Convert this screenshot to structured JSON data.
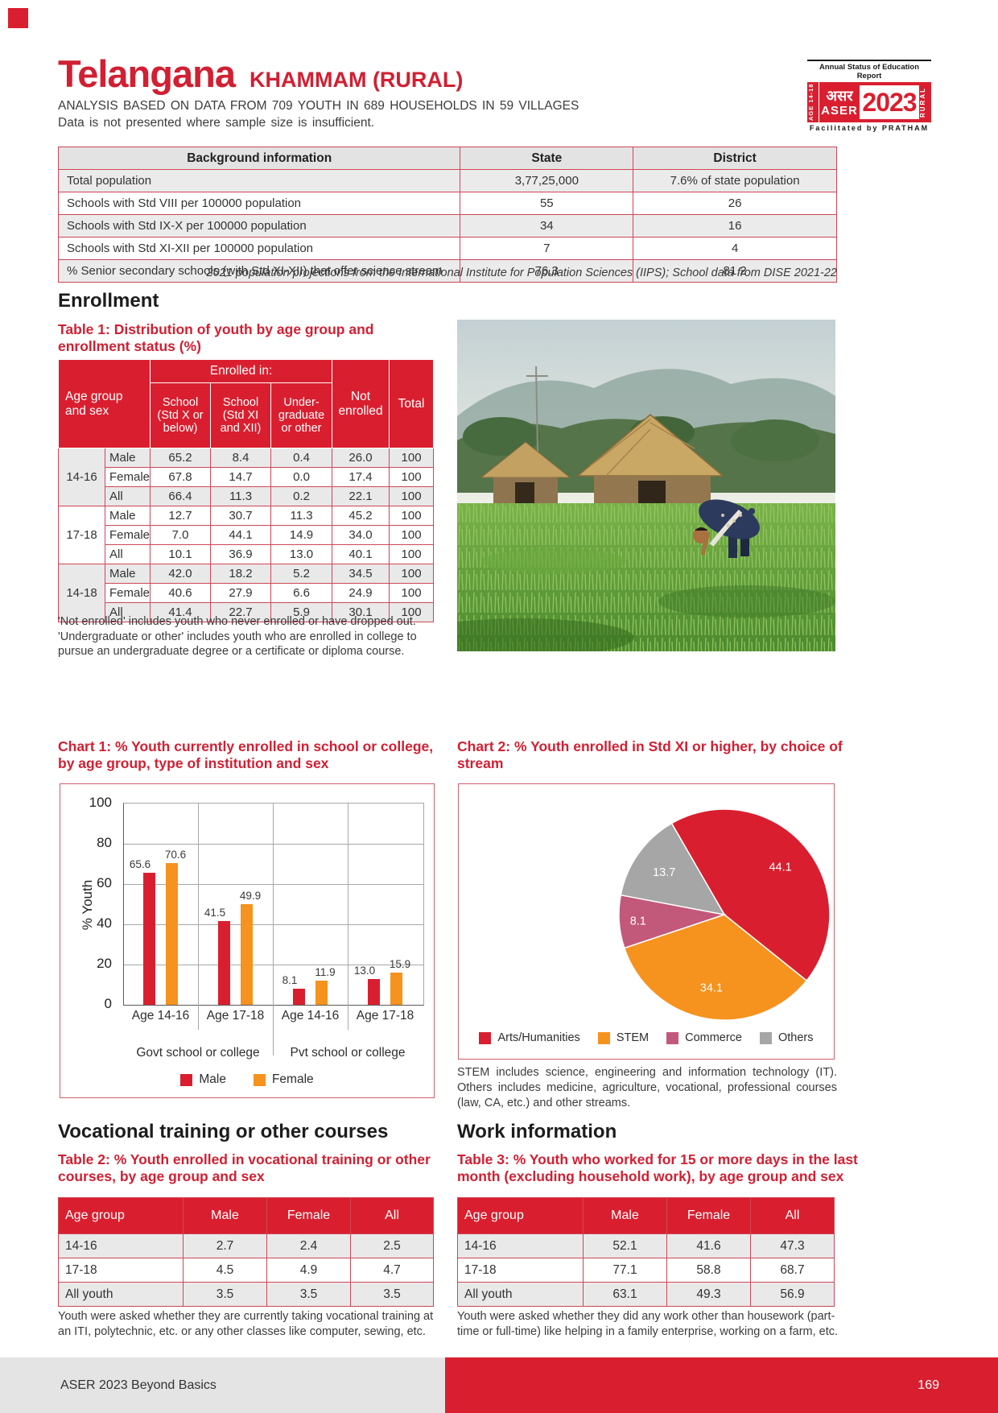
{
  "page": {
    "state": "Telangana",
    "district": "KHAMMAM (RURAL)",
    "subtitle1": "ANALYSIS BASED ON DATA FROM 709 YOUTH IN 689 HOUSEHOLDS IN 59 VILLAGES",
    "subtitle2": "Data is not presented where sample size is insufficient.",
    "footer_left": "ASER 2023 Beyond Basics",
    "footer_page": "169"
  },
  "logo": {
    "top": "Annual Status of Education Report",
    "age": "AGE 14-18",
    "hindi": "असर",
    "aser": "ASER",
    "year": "2023",
    "rural": "RURAL",
    "bottom": "Facilitated by PRATHAM"
  },
  "background_table": {
    "headers": [
      "Background information",
      "State",
      "District"
    ],
    "rows": [
      {
        "label": "Total population",
        "state": "3,77,25,000",
        "district": "7.6% of state population"
      },
      {
        "label": "Schools with Std VIII per 100000 population",
        "state": "55",
        "district": "26"
      },
      {
        "label": "Schools with Std IX-X per 100000 population",
        "state": "34",
        "district": "16"
      },
      {
        "label": "Schools with Std XI-XII per 100000 population",
        "state": "7",
        "district": "4"
      },
      {
        "label": "% Senior secondary schools (with Std XI-XII) that offer science stream",
        "state": "76.3",
        "district": "81.2"
      }
    ],
    "note": "2021 population projections from the International Institute for Population Sciences (IIPS); School data from DISE 2021-22"
  },
  "enrollment": {
    "heading": "Enrollment",
    "table1": {
      "title": "Table 1: Distribution of youth by age group and\nenrollment status (%)",
      "h_age": "Age group\nand sex",
      "h_enrolled": "Enrolled in:",
      "h_school1": "School\n(Std X or\nbelow)",
      "h_school2": "School\n(Std XI\nand XII)",
      "h_ug": "Under-\ngraduate\nor other",
      "h_not": "Not\nenrolled",
      "h_total": "Total",
      "groups": [
        {
          "age": "14-16",
          "rows": [
            {
              "sex": "Male",
              "c": [
                "65.2",
                "8.4",
                "0.4",
                "26.0",
                "100"
              ]
            },
            {
              "sex": "Female",
              "c": [
                "67.8",
                "14.7",
                "0.0",
                "17.4",
                "100"
              ]
            },
            {
              "sex": "All",
              "c": [
                "66.4",
                "11.3",
                "0.2",
                "22.1",
                "100"
              ]
            }
          ]
        },
        {
          "age": "17-18",
          "rows": [
            {
              "sex": "Male",
              "c": [
                "12.7",
                "30.7",
                "11.3",
                "45.2",
                "100"
              ]
            },
            {
              "sex": "Female",
              "c": [
                "7.0",
                "44.1",
                "14.9",
                "34.0",
                "100"
              ]
            },
            {
              "sex": "All",
              "c": [
                "10.1",
                "36.9",
                "13.0",
                "40.1",
                "100"
              ]
            }
          ]
        },
        {
          "age": "14-18",
          "rows": [
            {
              "sex": "Male",
              "c": [
                "42.0",
                "18.2",
                "5.2",
                "34.5",
                "100"
              ]
            },
            {
              "sex": "Female",
              "c": [
                "40.6",
                "27.9",
                "6.6",
                "24.9",
                "100"
              ]
            },
            {
              "sex": "All",
              "c": [
                "41.4",
                "22.7",
                "5.9",
                "30.1",
                "100"
              ]
            }
          ]
        }
      ],
      "note": "'Not enrolled' includes youth who never enrolled or have dropped out.\n'Undergraduate or other' includes youth who are enrolled in college to pursue an undergraduate degree or a certificate or diploma course."
    }
  },
  "chart1": {
    "title": "Chart 1: % Youth currently enrolled in school or college,\nby age group, type of institution and sex"
  },
  "chart2": {
    "title": "Chart 2: % Youth enrolled in Std XI or higher, by choice of\nstream",
    "note": "STEM includes science, engineering and information technology (IT). Others includes medicine, agriculture, vocational, professional courses (law, CA, etc.) and other streams."
  },
  "vocational": {
    "heading": "Vocational training or other courses",
    "table_title": "Table 2: % Youth enrolled in vocational training or other\ncourses, by age group and sex",
    "headers": [
      "Age group",
      "Male",
      "Female",
      "All"
    ],
    "rows": [
      {
        "age": "14-16",
        "c": [
          "2.7",
          "2.4",
          "2.5"
        ]
      },
      {
        "age": "17-18",
        "c": [
          "4.5",
          "4.9",
          "4.7"
        ]
      },
      {
        "age": "All youth",
        "c": [
          "3.5",
          "3.5",
          "3.5"
        ]
      }
    ],
    "note": "Youth were asked whether they are currently taking vocational training at an ITI, polytechnic, etc. or any other classes like computer, sewing, etc."
  },
  "work": {
    "heading": "Work information",
    "table_title": "Table 3: % Youth who worked for 15 or more days in the last\nmonth (excluding household work), by age group and sex",
    "headers": [
      "Age group",
      "Male",
      "Female",
      "All"
    ],
    "rows": [
      {
        "age": "14-16",
        "c": [
          "52.1",
          "41.6",
          "47.3"
        ]
      },
      {
        "age": "17-18",
        "c": [
          "77.1",
          "58.8",
          "68.7"
        ]
      },
      {
        "age": "All youth",
        "c": [
          "63.1",
          "49.3",
          "56.9"
        ]
      }
    ],
    "note": "Youth were asked whether they did any work other than housework (part-time or full-time) like helping in a family enterprise, working on a farm, etc."
  },
  "chart_data": [
    {
      "type": "bar",
      "title": "Chart 1: % Youth currently enrolled in school or college, by age group, type of institution and sex",
      "ylabel": "% Youth",
      "ylim": [
        0,
        100
      ],
      "yticks": [
        0,
        20,
        40,
        60,
        80,
        100
      ],
      "grid": true,
      "categories": [
        "Age 14-16",
        "Age 17-18",
        "Age 14-16",
        "Age 17-18"
      ],
      "group_labels": [
        "Govt school or college",
        "Pvt school or college"
      ],
      "series": [
        {
          "name": "Male",
          "color": "#d91f2f",
          "values": [
            65.6,
            41.5,
            8.1,
            13.0
          ]
        },
        {
          "name": "Female",
          "color": "#f6921e",
          "values": [
            70.6,
            49.9,
            11.9,
            15.9
          ]
        }
      ],
      "legend_position": "bottom"
    },
    {
      "type": "pie",
      "title": "Chart 2: % Youth enrolled in Std XI or higher, by choice of stream",
      "labels": [
        "Arts/Humanities",
        "STEM",
        "Commerce",
        "Others"
      ],
      "values": [
        44.1,
        34.1,
        8.1,
        13.7
      ],
      "colors": [
        "#d91f2f",
        "#f6921e",
        "#c2587a",
        "#a6a6a6"
      ],
      "start_angle_deg": -30,
      "legend_position": "bottom"
    }
  ]
}
